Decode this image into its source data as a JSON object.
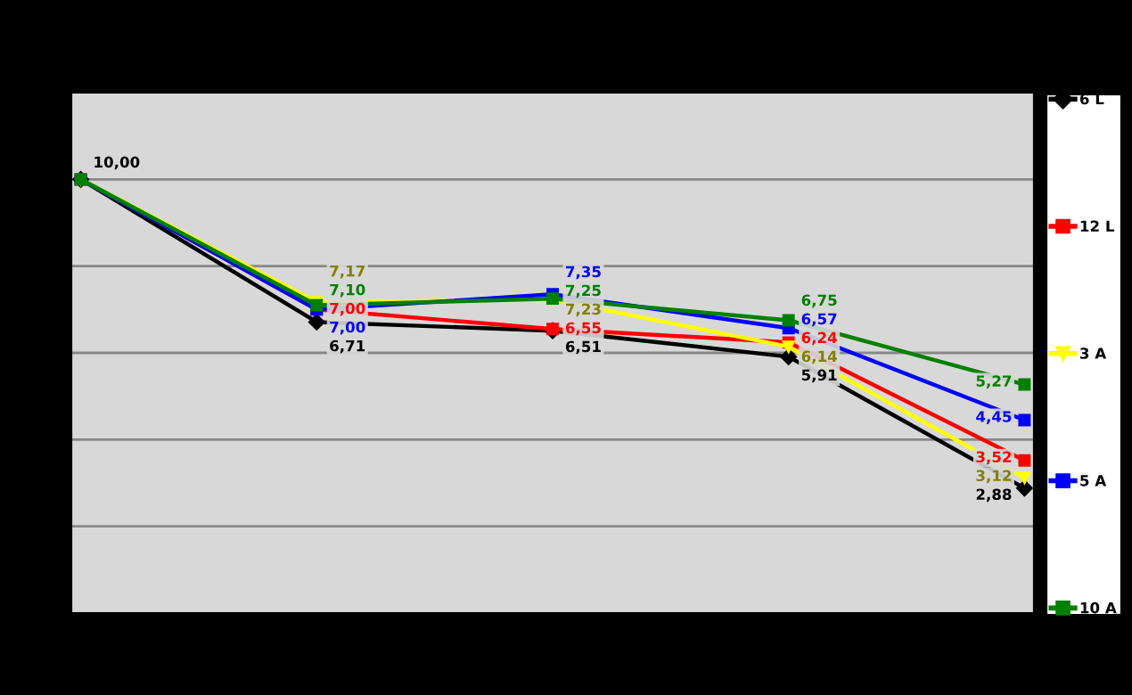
{
  "chart_data": {
    "type": "line",
    "categories": [
      null,
      null,
      null,
      null,
      null
    ],
    "series": [
      {
        "name": "6 L",
        "color": "#000000",
        "marker": "diamond",
        "values": [
          10.0,
          6.71,
          6.51,
          5.91,
          2.88
        ],
        "value_labels": [
          "10,00",
          "6,71",
          "6,51",
          "5,91",
          "2,88"
        ]
      },
      {
        "name": "12 L",
        "color": "#ff0000",
        "marker": "square",
        "values": [
          10.0,
          7.0,
          6.55,
          6.24,
          3.52
        ],
        "value_labels": [
          null,
          "7,00",
          "6,55",
          "6,24",
          "3,52"
        ]
      },
      {
        "name": "3 A",
        "color": "#ffff00",
        "marker": "triangle",
        "values": [
          10.0,
          7.17,
          7.23,
          6.14,
          3.12
        ],
        "value_labels": [
          null,
          "7,17",
          "7,23",
          "6,14",
          "3,12"
        ]
      },
      {
        "name": "5 A",
        "color": "#0000ff",
        "marker": "square",
        "values": [
          10.0,
          7.0,
          7.35,
          6.57,
          4.45
        ],
        "value_labels": [
          null,
          "7,00",
          "7,35",
          "6,57",
          "4,45"
        ]
      },
      {
        "name": "10 A",
        "color": "#008000",
        "marker": "square",
        "values": [
          10.0,
          7.1,
          7.25,
          6.75,
          5.27
        ],
        "value_labels": [
          null,
          "7,10",
          "7,25",
          "6,75",
          "5,27"
        ]
      }
    ],
    "ylim": [
      0,
      12
    ],
    "yticks": [
      {
        "value": 2,
        "label": null
      },
      {
        "value": 4,
        "label": null
      },
      {
        "value": 6,
        "label": null
      },
      {
        "value": 8,
        "label": null
      },
      {
        "value": 10,
        "label": null
      }
    ],
    "grid": "y",
    "legend": "right",
    "line_style": "solid"
  }
}
